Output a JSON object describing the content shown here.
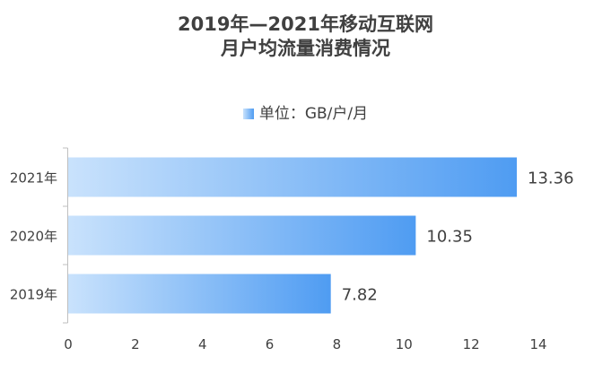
{
  "chart_data": {
    "type": "bar",
    "orientation": "horizontal",
    "title": [
      "2019年—2021年移动互联网",
      "月户均流量消费情况"
    ],
    "legend": "单位：GB/户/月",
    "legend_position": "top-center",
    "categories": [
      "2021年",
      "2020年",
      "2019年"
    ],
    "values": [
      13.36,
      10.35,
      7.82
    ],
    "data_labels": [
      "13.36",
      "10.35",
      "7.82"
    ],
    "xlim": [
      0,
      14
    ],
    "x_ticks": [
      "0",
      "2",
      "4",
      "6",
      "8",
      "10",
      "12",
      "14"
    ],
    "grid": false,
    "colors": {
      "bar_start": "#c9e2fc",
      "bar_end": "#4f9cf2",
      "axis": "#bfbfbf",
      "text": "#404040"
    }
  }
}
